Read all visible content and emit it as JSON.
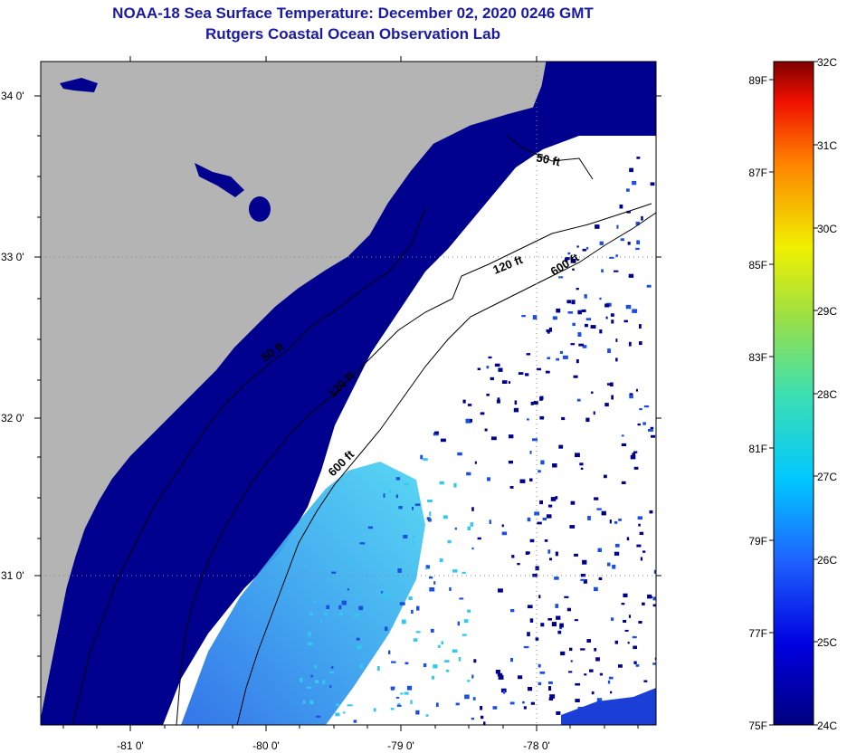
{
  "title": {
    "line1": "NOAA-18 Sea Surface Temperature:  December 02, 2020 0246 GMT",
    "line2": "Rutgers Coastal Ocean Observation Lab"
  },
  "map": {
    "lat_ticks": [
      "34 0'",
      "33 0'",
      "32 0'",
      "31 0'"
    ],
    "lon_ticks": [
      "-81 0'",
      "-80 0'",
      "-79 0'",
      "-78 0'"
    ],
    "lat_range": [
      30.1,
      34.2
    ],
    "lon_range": [
      -81.55,
      -77.0
    ],
    "colors": {
      "land": "#b4b4b4",
      "cloud": "#ffffff",
      "sst_cold": "#00008f",
      "sst_mid": "#1a4fe0",
      "sst_warm": "#33c8f0"
    },
    "contours": {
      "c50_upper": "50 ft",
      "c120_upper": "120 ft",
      "c600_upper": "600 ft",
      "c50_lower": "50 ft",
      "c120_lower": "120 ft",
      "c600_lower": "600 ft"
    }
  },
  "colorbar": {
    "celsius": [
      "32C",
      "31C",
      "30C",
      "29C",
      "28C",
      "27C",
      "26C",
      "25C",
      "24C"
    ],
    "fahrenheit": [
      "89F",
      "87F",
      "85F",
      "83F",
      "81F",
      "79F",
      "77F",
      "75F"
    ]
  }
}
